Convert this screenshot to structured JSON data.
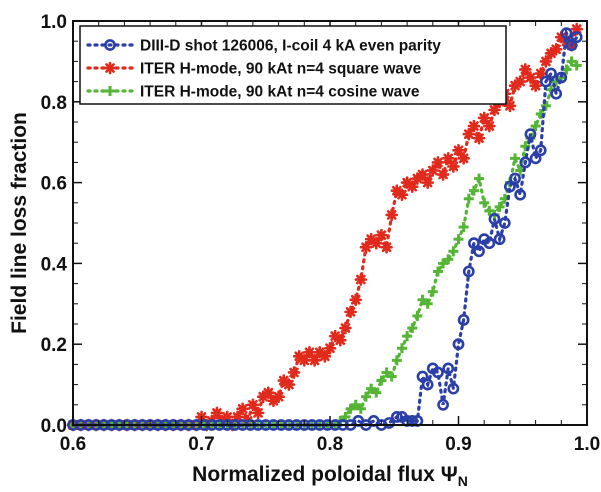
{
  "chart_data": {
    "type": "scatter",
    "xlabel": "Normalized poloidal flux",
    "xlabel_symbol": "Ψ",
    "xlabel_subscript": "N",
    "ylabel": "Field line loss fraction",
    "xlim": [
      0.6,
      1.0
    ],
    "ylim": [
      0.0,
      1.0
    ],
    "x_ticks": [
      0.6,
      0.7,
      0.8,
      0.9,
      1.0
    ],
    "x_tick_labels": [
      "0.6",
      "0.7",
      "0.8",
      "0.9",
      "1.0"
    ],
    "y_ticks": [
      0.0,
      0.2,
      0.4,
      0.6,
      0.8,
      1.0
    ],
    "y_tick_labels": [
      "0.0",
      "0.2",
      "0.4",
      "0.6",
      "0.8",
      "1.0"
    ],
    "grid": false,
    "legend_position": "top-left",
    "series": [
      {
        "name": "DIII-D shot 126006, I-coil 4 kA even parity",
        "color": "#2b3fa8",
        "marker": "circle",
        "line": "dotted",
        "points": [
          [
            0.6,
            0.0
          ],
          [
            0.606,
            0.0
          ],
          [
            0.612,
            0.0
          ],
          [
            0.618,
            0.0
          ],
          [
            0.624,
            0.0
          ],
          [
            0.63,
            0.0
          ],
          [
            0.636,
            0.0
          ],
          [
            0.642,
            0.0
          ],
          [
            0.648,
            0.0
          ],
          [
            0.654,
            0.0
          ],
          [
            0.66,
            0.0
          ],
          [
            0.666,
            0.0
          ],
          [
            0.672,
            0.0
          ],
          [
            0.678,
            0.0
          ],
          [
            0.684,
            0.0
          ],
          [
            0.69,
            0.0
          ],
          [
            0.696,
            0.0
          ],
          [
            0.702,
            0.0
          ],
          [
            0.708,
            0.0
          ],
          [
            0.714,
            0.0
          ],
          [
            0.72,
            0.0
          ],
          [
            0.726,
            0.0
          ],
          [
            0.732,
            0.0
          ],
          [
            0.738,
            0.0
          ],
          [
            0.744,
            0.0
          ],
          [
            0.75,
            0.0
          ],
          [
            0.756,
            0.0
          ],
          [
            0.762,
            0.0
          ],
          [
            0.768,
            0.0
          ],
          [
            0.774,
            0.0
          ],
          [
            0.78,
            0.0
          ],
          [
            0.786,
            0.0
          ],
          [
            0.792,
            0.0
          ],
          [
            0.798,
            0.0
          ],
          [
            0.804,
            0.0
          ],
          [
            0.81,
            0.0
          ],
          [
            0.816,
            0.0
          ],
          [
            0.822,
            0.01
          ],
          [
            0.828,
            0.0
          ],
          [
            0.834,
            0.01
          ],
          [
            0.84,
            0.0
          ],
          [
            0.846,
            0.005
          ],
          [
            0.852,
            0.02
          ],
          [
            0.856,
            0.02
          ],
          [
            0.86,
            0.01
          ],
          [
            0.864,
            0.01
          ],
          [
            0.868,
            0.01
          ],
          [
            0.872,
            0.12
          ],
          [
            0.876,
            0.1
          ],
          [
            0.88,
            0.14
          ],
          [
            0.884,
            0.13
          ],
          [
            0.888,
            0.05
          ],
          [
            0.892,
            0.14
          ],
          [
            0.896,
            0.09
          ],
          [
            0.9,
            0.2
          ],
          [
            0.904,
            0.26
          ],
          [
            0.908,
            0.38
          ],
          [
            0.912,
            0.45
          ],
          [
            0.916,
            0.43
          ],
          [
            0.92,
            0.46
          ],
          [
            0.924,
            0.45
          ],
          [
            0.928,
            0.51
          ],
          [
            0.932,
            0.46
          ],
          [
            0.936,
            0.5
          ],
          [
            0.94,
            0.59
          ],
          [
            0.944,
            0.61
          ],
          [
            0.948,
            0.57
          ],
          [
            0.952,
            0.65
          ],
          [
            0.956,
            0.72
          ],
          [
            0.96,
            0.66
          ],
          [
            0.964,
            0.68
          ],
          [
            0.968,
            0.85
          ],
          [
            0.972,
            0.87
          ],
          [
            0.976,
            0.82
          ],
          [
            0.98,
            0.86
          ],
          [
            0.984,
            0.97
          ],
          [
            0.988,
            0.94
          ],
          [
            0.992,
            0.96
          ]
        ]
      },
      {
        "name": "ITER H-mode, 90 kAt n=4 square wave",
        "color": "#e02a1c",
        "marker": "asterisk",
        "line": "dotted",
        "points": [
          [
            0.6,
            0.0
          ],
          [
            0.606,
            0.0
          ],
          [
            0.612,
            0.0
          ],
          [
            0.618,
            0.0
          ],
          [
            0.624,
            0.0
          ],
          [
            0.63,
            0.0
          ],
          [
            0.636,
            0.0
          ],
          [
            0.642,
            0.0
          ],
          [
            0.648,
            0.0
          ],
          [
            0.654,
            0.0
          ],
          [
            0.66,
            0.0
          ],
          [
            0.666,
            0.0
          ],
          [
            0.672,
            0.0
          ],
          [
            0.678,
            0.0
          ],
          [
            0.684,
            0.0
          ],
          [
            0.69,
            0.0
          ],
          [
            0.696,
            0.0
          ],
          [
            0.7,
            0.02
          ],
          [
            0.704,
            0.0
          ],
          [
            0.708,
            0.01
          ],
          [
            0.712,
            0.03
          ],
          [
            0.716,
            0.01
          ],
          [
            0.72,
            0.02
          ],
          [
            0.724,
            0.0
          ],
          [
            0.728,
            0.02
          ],
          [
            0.732,
            0.04
          ],
          [
            0.736,
            0.01
          ],
          [
            0.74,
            0.05
          ],
          [
            0.744,
            0.03
          ],
          [
            0.748,
            0.07
          ],
          [
            0.752,
            0.08
          ],
          [
            0.756,
            0.06
          ],
          [
            0.76,
            0.07
          ],
          [
            0.764,
            0.11
          ],
          [
            0.768,
            0.1
          ],
          [
            0.772,
            0.13
          ],
          [
            0.776,
            0.17
          ],
          [
            0.78,
            0.16
          ],
          [
            0.784,
            0.18
          ],
          [
            0.788,
            0.16
          ],
          [
            0.792,
            0.18
          ],
          [
            0.796,
            0.17
          ],
          [
            0.8,
            0.19
          ],
          [
            0.804,
            0.22
          ],
          [
            0.808,
            0.21
          ],
          [
            0.812,
            0.24
          ],
          [
            0.816,
            0.28
          ],
          [
            0.82,
            0.31
          ],
          [
            0.824,
            0.36
          ],
          [
            0.828,
            0.44
          ],
          [
            0.832,
            0.46
          ],
          [
            0.836,
            0.45
          ],
          [
            0.84,
            0.47
          ],
          [
            0.844,
            0.44
          ],
          [
            0.848,
            0.52
          ],
          [
            0.852,
            0.58
          ],
          [
            0.856,
            0.57
          ],
          [
            0.86,
            0.6
          ],
          [
            0.864,
            0.59
          ],
          [
            0.868,
            0.61
          ],
          [
            0.872,
            0.62
          ],
          [
            0.876,
            0.6
          ],
          [
            0.88,
            0.63
          ],
          [
            0.884,
            0.65
          ],
          [
            0.888,
            0.62
          ],
          [
            0.892,
            0.66
          ],
          [
            0.896,
            0.64
          ],
          [
            0.9,
            0.68
          ],
          [
            0.904,
            0.66
          ],
          [
            0.908,
            0.72
          ],
          [
            0.912,
            0.74
          ],
          [
            0.916,
            0.71
          ],
          [
            0.92,
            0.76
          ],
          [
            0.924,
            0.74
          ],
          [
            0.928,
            0.78
          ],
          [
            0.932,
            0.8
          ],
          [
            0.936,
            0.82
          ],
          [
            0.94,
            0.79
          ],
          [
            0.944,
            0.84
          ],
          [
            0.948,
            0.85
          ],
          [
            0.952,
            0.88
          ],
          [
            0.956,
            0.86
          ],
          [
            0.96,
            0.84
          ],
          [
            0.964,
            0.87
          ],
          [
            0.968,
            0.9
          ],
          [
            0.972,
            0.92
          ],
          [
            0.976,
            0.93
          ],
          [
            0.98,
            0.96
          ],
          [
            0.984,
            0.95
          ],
          [
            0.988,
            0.94
          ],
          [
            0.992,
            0.98
          ]
        ]
      },
      {
        "name": "ITER H-mode, 90 kAt n=4 cosine wave",
        "color": "#55b535",
        "marker": "plus",
        "line": "dotted",
        "points": [
          [
            0.6,
            0.0
          ],
          [
            0.606,
            0.0
          ],
          [
            0.612,
            0.0
          ],
          [
            0.618,
            0.0
          ],
          [
            0.624,
            0.0
          ],
          [
            0.63,
            0.0
          ],
          [
            0.636,
            0.0
          ],
          [
            0.642,
            0.0
          ],
          [
            0.648,
            0.0
          ],
          [
            0.654,
            0.0
          ],
          [
            0.66,
            0.0
          ],
          [
            0.666,
            0.0
          ],
          [
            0.672,
            0.0
          ],
          [
            0.678,
            0.0
          ],
          [
            0.684,
            0.0
          ],
          [
            0.69,
            0.0
          ],
          [
            0.696,
            0.0
          ],
          [
            0.702,
            0.0
          ],
          [
            0.708,
            0.0
          ],
          [
            0.714,
            0.0
          ],
          [
            0.72,
            0.0
          ],
          [
            0.726,
            0.0
          ],
          [
            0.732,
            0.0
          ],
          [
            0.738,
            0.0
          ],
          [
            0.744,
            0.0
          ],
          [
            0.75,
            0.0
          ],
          [
            0.756,
            0.0
          ],
          [
            0.762,
            0.0
          ],
          [
            0.768,
            0.0
          ],
          [
            0.774,
            0.0
          ],
          [
            0.78,
            0.0
          ],
          [
            0.786,
            0.0
          ],
          [
            0.792,
            0.0
          ],
          [
            0.798,
            0.0
          ],
          [
            0.804,
            0.0
          ],
          [
            0.808,
            0.01
          ],
          [
            0.812,
            0.02
          ],
          [
            0.816,
            0.04
          ],
          [
            0.82,
            0.05
          ],
          [
            0.824,
            0.04
          ],
          [
            0.828,
            0.07
          ],
          [
            0.832,
            0.09
          ],
          [
            0.836,
            0.08
          ],
          [
            0.84,
            0.11
          ],
          [
            0.844,
            0.13
          ],
          [
            0.848,
            0.12
          ],
          [
            0.852,
            0.16
          ],
          [
            0.856,
            0.19
          ],
          [
            0.86,
            0.22
          ],
          [
            0.864,
            0.24
          ],
          [
            0.868,
            0.27
          ],
          [
            0.872,
            0.31
          ],
          [
            0.876,
            0.3
          ],
          [
            0.88,
            0.33
          ],
          [
            0.884,
            0.38
          ],
          [
            0.888,
            0.4
          ],
          [
            0.892,
            0.41
          ],
          [
            0.896,
            0.43
          ],
          [
            0.9,
            0.46
          ],
          [
            0.904,
            0.49
          ],
          [
            0.908,
            0.56
          ],
          [
            0.912,
            0.58
          ],
          [
            0.916,
            0.61
          ],
          [
            0.92,
            0.55
          ],
          [
            0.924,
            0.53
          ],
          [
            0.928,
            0.52
          ],
          [
            0.932,
            0.54
          ],
          [
            0.936,
            0.56
          ],
          [
            0.94,
            0.6
          ],
          [
            0.944,
            0.66
          ],
          [
            0.948,
            0.63
          ],
          [
            0.952,
            0.69
          ],
          [
            0.956,
            0.71
          ],
          [
            0.96,
            0.74
          ],
          [
            0.964,
            0.77
          ],
          [
            0.968,
            0.79
          ],
          [
            0.972,
            0.83
          ],
          [
            0.976,
            0.85
          ],
          [
            0.98,
            0.86
          ],
          [
            0.984,
            0.88
          ],
          [
            0.988,
            0.9
          ],
          [
            0.992,
            0.89
          ]
        ]
      }
    ]
  }
}
